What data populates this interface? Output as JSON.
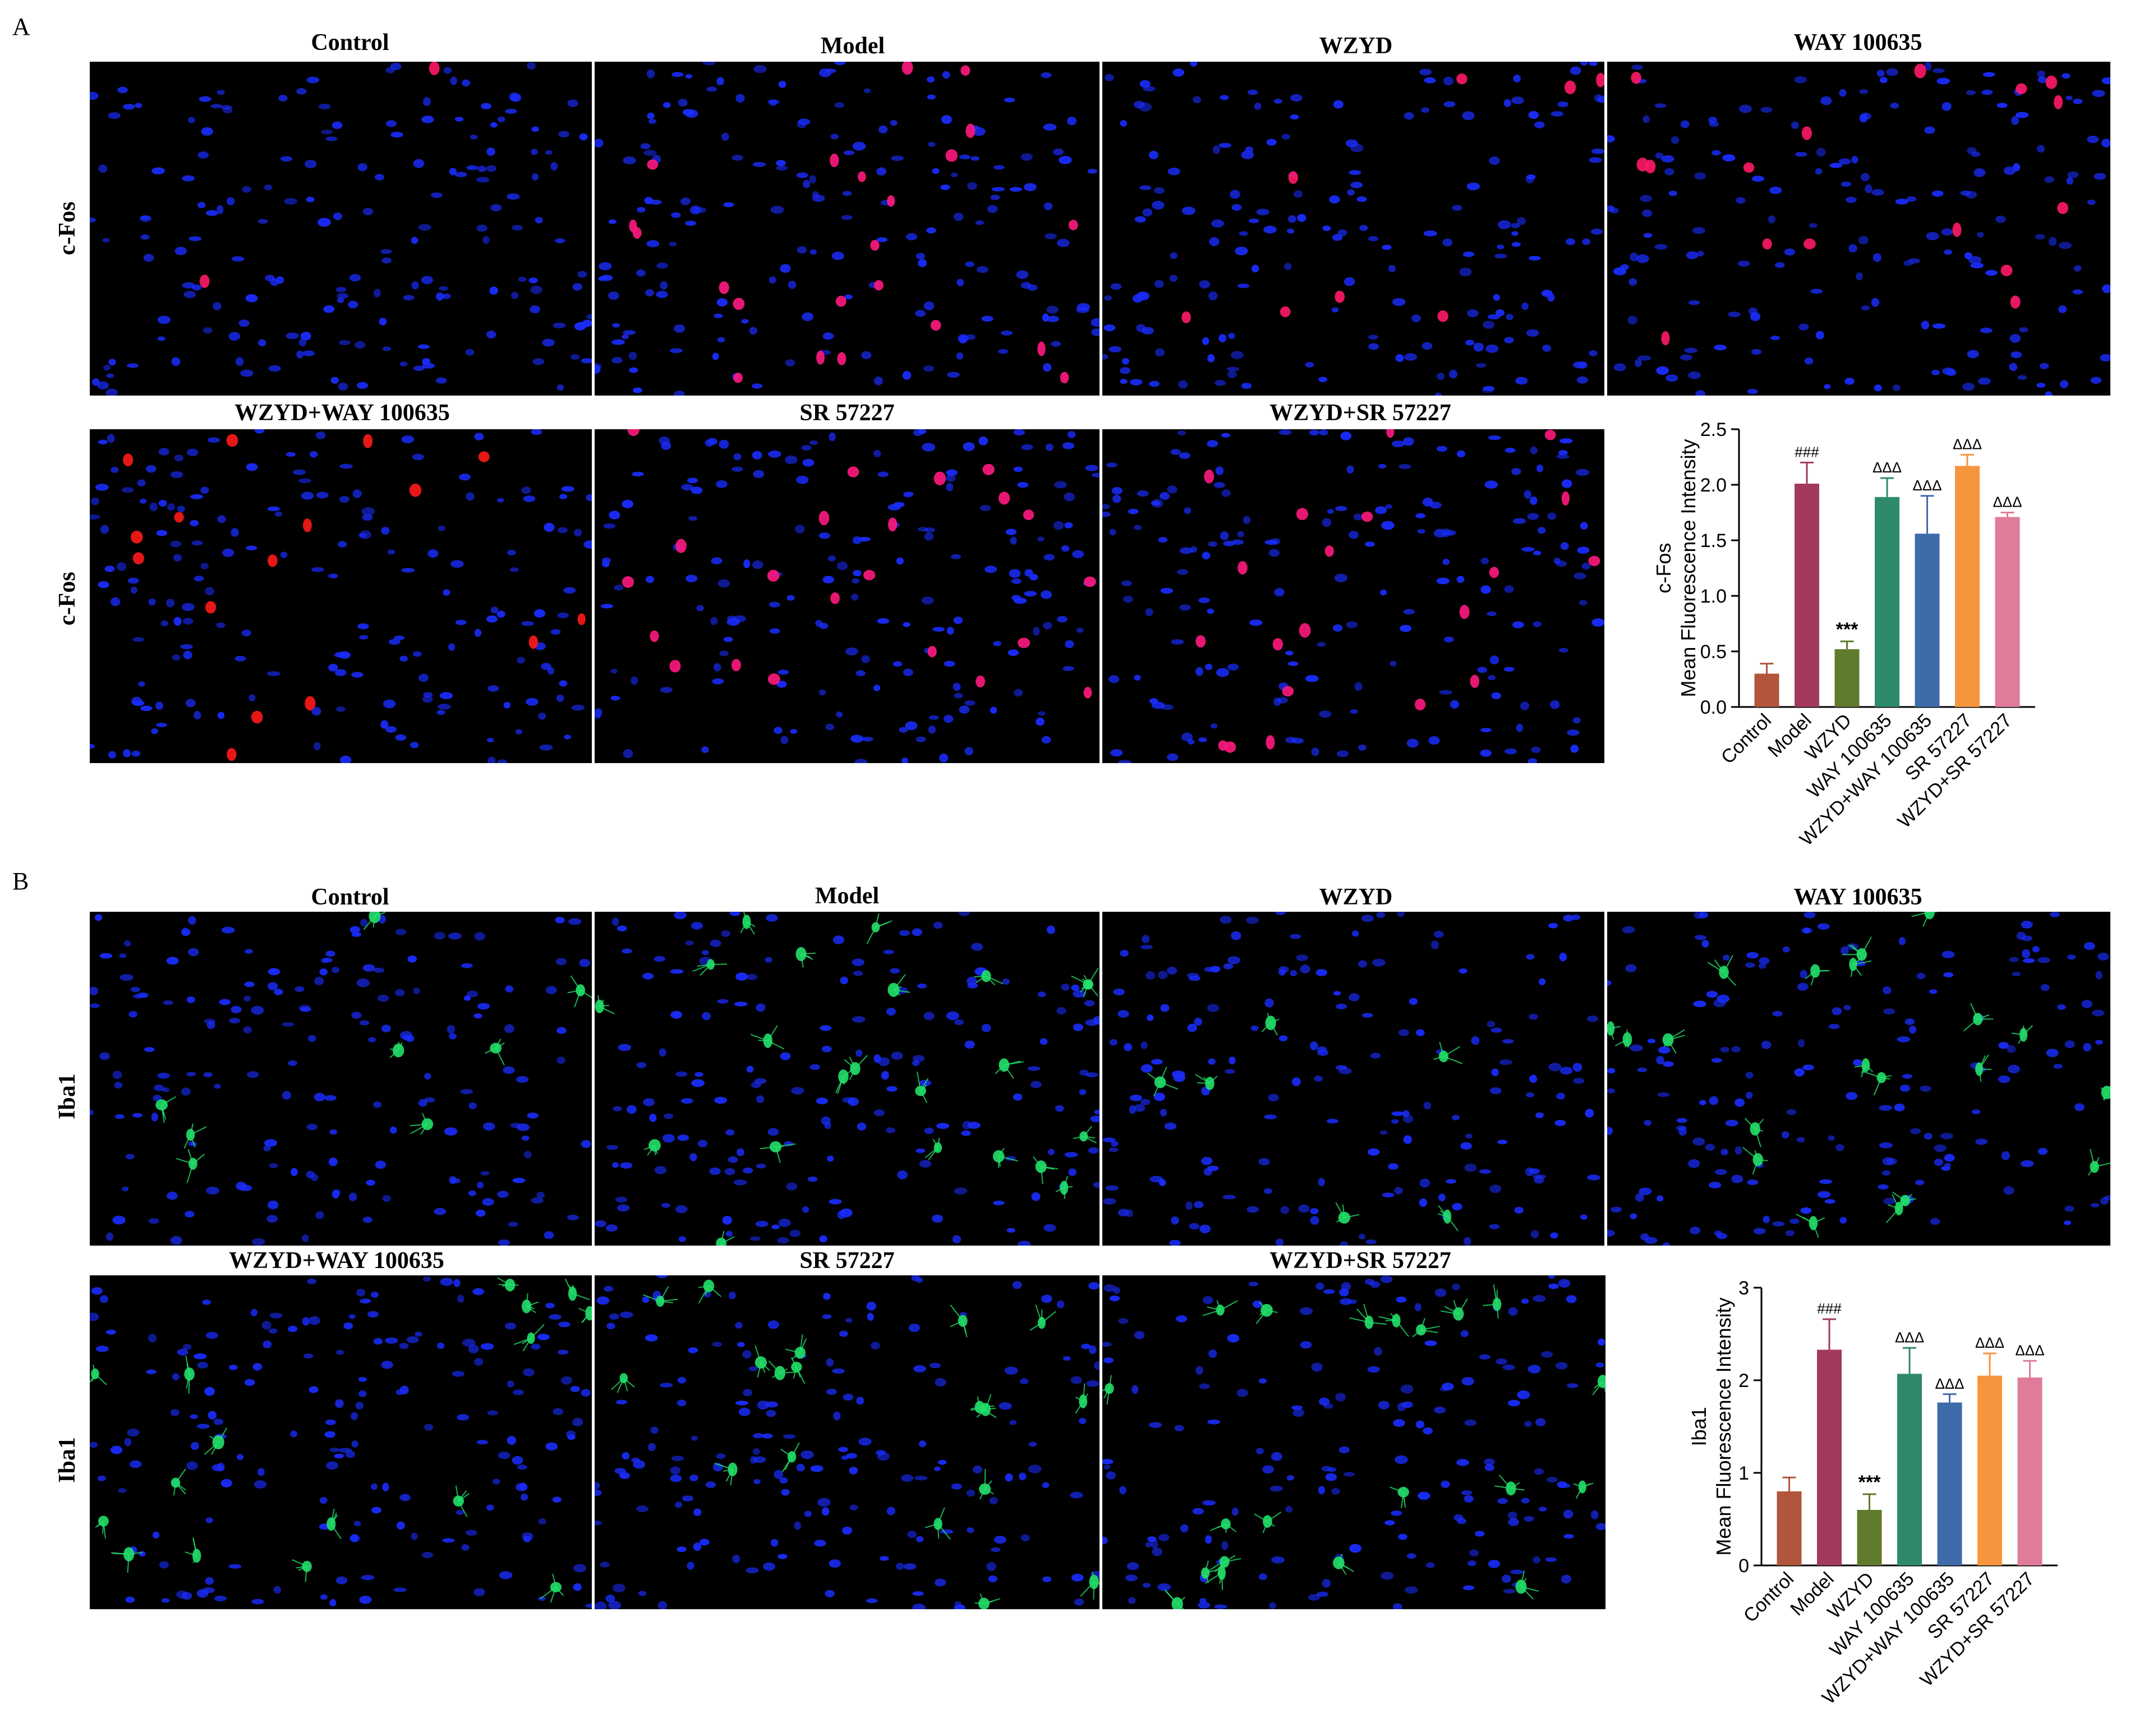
{
  "panels": [
    {
      "letter": "A",
      "marker": "c-Fos",
      "row1_titles": [
        "Control",
        "Model",
        "WZYD",
        "WAY 100635"
      ],
      "row2_titles": [
        "WZYD+WAY 100635",
        "SR 57227",
        "WZYD+SR 57227"
      ],
      "row_labels": [
        "c-Fos",
        "c-Fos"
      ]
    },
    {
      "letter": "B",
      "marker": "Iba1",
      "row1_titles": [
        "Control",
        "Model",
        "WZYD",
        "WAY 100635"
      ],
      "row2_titles": [
        "WZYD+WAY 100635",
        "SR 57227",
        "WZYD+SR 57227"
      ],
      "row_labels": [
        "Iba1",
        "Iba1"
      ]
    }
  ],
  "micrographs": {
    "A": [
      {
        "signal": "#ff1a66",
        "cells": 2
      },
      {
        "signal": "#ff1a80",
        "cells": 22
      },
      {
        "signal": "#ff1a66",
        "cells": 8
      },
      {
        "signal": "#ff1a66",
        "cells": 16
      },
      {
        "signal": "#ff1a1a",
        "cells": 16
      },
      {
        "signal": "#ff1a80",
        "cells": 22
      },
      {
        "signal": "#ff1a80",
        "cells": 20
      }
    ],
    "B": [
      {
        "signal": "#22e06a",
        "cells": 8
      },
      {
        "signal": "#22e06a",
        "cells": 22
      },
      {
        "signal": "#22e06a",
        "cells": 6
      },
      {
        "signal": "#22e06a",
        "cells": 20
      },
      {
        "signal": "#22e06a",
        "cells": 16
      },
      {
        "signal": "#22e06a",
        "cells": 18
      },
      {
        "signal": "#22e06a",
        "cells": 20
      }
    ],
    "nucleus_color": "#1a2dff"
  },
  "chart_data": [
    {
      "type": "bar",
      "title": "",
      "categories": [
        "Control",
        "Model",
        "WZYD",
        "WAY 100635",
        "WZYD+WAY 100635",
        "SR 57227",
        "WZYD+SR 57227"
      ],
      "values": [
        0.3,
        2.01,
        0.52,
        1.89,
        1.56,
        2.17,
        1.71
      ],
      "errors": [
        0.09,
        0.19,
        0.07,
        0.17,
        0.34,
        0.1,
        0.04
      ],
      "annotations": [
        "",
        "###",
        "***",
        "ΔΔΔ",
        "ΔΔΔ",
        "ΔΔΔ",
        "ΔΔΔ"
      ],
      "colors": [
        "#b1553c",
        "#a23a5c",
        "#5f7b2c",
        "#2e8a68",
        "#3f6bab",
        "#f7953f",
        "#de7c99"
      ],
      "xlabel": "",
      "ylabel": "Mean Fluorescence Intensity",
      "ylabel_top": "c-Fos",
      "ylim": [
        0,
        2.5
      ],
      "yticks": [
        "0.0",
        "0.5",
        "1.0",
        "1.5",
        "2.0",
        "2.5"
      ],
      "ytick_values": [
        0,
        0.5,
        1.0,
        1.5,
        2.0,
        2.5
      ],
      "grid": false
    },
    {
      "type": "bar",
      "title": "",
      "categories": [
        "Control",
        "Model",
        "WZYD",
        "WAY 100635",
        "WZYD+WAY 100635",
        "SR 57227",
        "WZYD+SR 57227"
      ],
      "values": [
        0.8,
        2.33,
        0.6,
        2.07,
        1.76,
        2.05,
        2.03
      ],
      "errors": [
        0.15,
        0.33,
        0.17,
        0.28,
        0.09,
        0.24,
        0.18
      ],
      "annotations": [
        "",
        "###",
        "***",
        "ΔΔΔ",
        "ΔΔΔ",
        "ΔΔΔ",
        "ΔΔΔ"
      ],
      "colors": [
        "#b1553c",
        "#a23a5c",
        "#5f7b2c",
        "#2e8a68",
        "#3f6bab",
        "#f7953f",
        "#de7c99"
      ],
      "xlabel": "",
      "ylabel": "Mean Fluorescence Intensity",
      "ylabel_top": "Iba1",
      "ylim": [
        0,
        3
      ],
      "yticks": [
        "0",
        "1",
        "2",
        "3"
      ],
      "ytick_values": [
        0,
        1,
        2,
        3
      ],
      "grid": false
    }
  ]
}
